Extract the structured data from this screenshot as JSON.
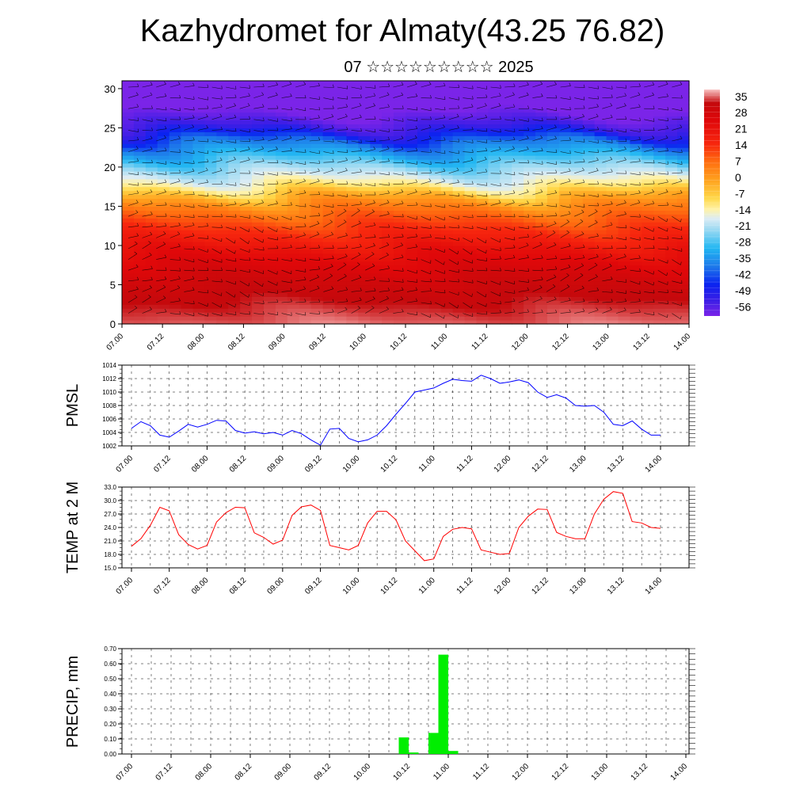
{
  "page": {
    "title": "Kazhydromet for Almaty(43.25 76.82)",
    "subtitle": "07 ☆☆☆☆☆☆☆☆☆ 2025"
  },
  "colors": {
    "pmsl_line": "#0000ff",
    "temp_line": "#ff0000",
    "precip_bar": "#00ee00",
    "grid": "#000000"
  },
  "chart_data": [
    {
      "type": "heatmap",
      "name": "vertical-cross-section",
      "title": "",
      "xlabel": "",
      "ylabel": "",
      "x_ticks": [
        "07.00",
        "07.12",
        "08.00",
        "08.12",
        "09.00",
        "09.12",
        "10.00",
        "10.12",
        "11.00",
        "11.12",
        "12.00",
        "12.12",
        "13.00",
        "13.12",
        "14.00"
      ],
      "y_ticks": [
        "0",
        "5",
        "10",
        "15",
        "20",
        "25",
        "30"
      ],
      "ylim": [
        0,
        31
      ],
      "colorbar": {
        "labels": [
          "35",
          "28",
          "21",
          "14",
          "7",
          "0",
          "-7",
          "-14",
          "-21",
          "-28",
          "-35",
          "-42",
          "-49",
          "-56"
        ],
        "range": [
          -60,
          38
        ]
      },
      "vertical_profile": [
        {
          "level": 0,
          "value": 36
        },
        {
          "level": 3,
          "value": 32
        },
        {
          "level": 6,
          "value": 28
        },
        {
          "level": 9,
          "value": 22
        },
        {
          "level": 11,
          "value": 16
        },
        {
          "level": 13,
          "value": 10
        },
        {
          "level": 15,
          "value": 3
        },
        {
          "level": 16.5,
          "value": -5
        },
        {
          "level": 17.5,
          "value": -12
        },
        {
          "level": 19,
          "value": -20
        },
        {
          "level": 21,
          "value": -30
        },
        {
          "level": 23,
          "value": -40
        },
        {
          "level": 25,
          "value": -55
        },
        {
          "level": 27,
          "value": -60
        },
        {
          "level": 31,
          "value": -60
        }
      ],
      "wind_barbs": "dense field of wind barbs overlaid on the temperature cross-section"
    },
    {
      "type": "line",
      "name": "pmsl",
      "ylabel": "PMSL",
      "ylim": [
        1002,
        1014
      ],
      "y_ticks": [
        "1002",
        "1004",
        "1006",
        "1008",
        "1010",
        "1012",
        "1014"
      ],
      "x_ticks": [
        "07.00",
        "07.12",
        "08.00",
        "08.12",
        "09.00",
        "09.12",
        "10.00",
        "10.12",
        "11.00",
        "11.12",
        "12.00",
        "12.12",
        "13.00",
        "13.12",
        "14.00"
      ],
      "x": [
        0,
        3,
        6,
        9,
        12,
        15,
        18,
        21,
        24,
        27,
        30,
        33,
        36,
        39,
        42,
        45,
        48,
        51,
        54,
        57,
        60,
        63,
        66,
        69,
        72,
        75,
        78,
        81,
        84,
        87,
        90,
        93,
        96,
        99,
        102,
        105,
        108,
        111,
        114,
        117,
        120,
        123,
        126,
        129,
        132,
        135,
        138,
        141,
        144,
        147,
        150,
        153,
        156,
        159,
        162,
        165,
        168
      ],
      "values": [
        1004.6,
        1005.6,
        1005.0,
        1003.6,
        1003.3,
        1004.2,
        1005.2,
        1004.8,
        1005.2,
        1005.8,
        1005.7,
        1004.3,
        1003.9,
        1004.1,
        1003.8,
        1004.0,
        1003.6,
        1004.3,
        1003.8,
        1002.9,
        1002.1,
        1004.5,
        1004.6,
        1003.1,
        1002.6,
        1002.9,
        1003.6,
        1005.0,
        1006.7,
        1008.3,
        1010.0,
        1010.3,
        1010.6,
        1011.3,
        1011.9,
        1011.7,
        1011.6,
        1012.5,
        1012.0,
        1011.3,
        1011.5,
        1011.8,
        1011.4,
        1010.0,
        1009.2,
        1009.6,
        1009.1,
        1008.0,
        1007.9,
        1008.0,
        1007.0,
        1005.2,
        1005.0,
        1005.7,
        1004.5,
        1003.6,
        1003.6
      ]
    },
    {
      "type": "line",
      "name": "temp-2m",
      "ylabel": "TEMP at 2 M",
      "ylim": [
        15,
        33
      ],
      "y_ticks": [
        "15.0",
        "18.0",
        "21.0",
        "24.0",
        "27.0",
        "30.0",
        "33.0"
      ],
      "x_ticks": [
        "07.00",
        "07.12",
        "08.00",
        "08.12",
        "09.00",
        "09.12",
        "10.00",
        "10.12",
        "11.00",
        "11.12",
        "12.00",
        "12.12",
        "13.00",
        "13.12",
        "14.00"
      ],
      "x": [
        0,
        3,
        6,
        9,
        12,
        15,
        18,
        21,
        24,
        27,
        30,
        33,
        36,
        39,
        42,
        45,
        48,
        51,
        54,
        57,
        60,
        63,
        66,
        69,
        72,
        75,
        78,
        81,
        84,
        87,
        90,
        93,
        96,
        99,
        102,
        105,
        108,
        111,
        114,
        117,
        120,
        123,
        126,
        129,
        132,
        135,
        138,
        141,
        144,
        147,
        150,
        153,
        156,
        159,
        162,
        165,
        168
      ],
      "values": [
        19.8,
        21.5,
        24.5,
        28.5,
        27.7,
        22.4,
        20.2,
        19.2,
        20.0,
        25.2,
        27.3,
        28.5,
        28.4,
        22.8,
        21.8,
        20.3,
        21.2,
        26.7,
        28.6,
        29.0,
        27.8,
        20.0,
        19.5,
        19.0,
        20.0,
        25.0,
        27.6,
        27.6,
        25.7,
        21.0,
        18.8,
        16.6,
        17.0,
        22.0,
        23.6,
        24.0,
        23.7,
        19.0,
        18.5,
        18.0,
        18.2,
        24.0,
        26.5,
        28.1,
        28.0,
        22.9,
        22.0,
        21.5,
        21.5,
        27.0,
        30.3,
        32.0,
        31.6,
        25.3,
        25.0,
        24.0,
        23.8
      ]
    },
    {
      "type": "bar",
      "name": "precip",
      "ylabel": "PRECIP, mm",
      "ylim": [
        0,
        0.7
      ],
      "y_ticks": [
        "0.00",
        "0.10",
        "0.20",
        "0.30",
        "0.40",
        "0.50",
        "0.60",
        "0.70"
      ],
      "x_ticks": [
        "07.00",
        "07.12",
        "08.00",
        "08.12",
        "09.00",
        "09.12",
        "10.00",
        "10.12",
        "11.00",
        "11.12",
        "12.00",
        "12.12",
        "13.00",
        "13.12",
        "14.00"
      ],
      "x": [
        81,
        84,
        90,
        93,
        96
      ],
      "values": [
        0.11,
        0.01,
        0.14,
        0.66,
        0.02
      ],
      "bar_hours": 3
    }
  ]
}
